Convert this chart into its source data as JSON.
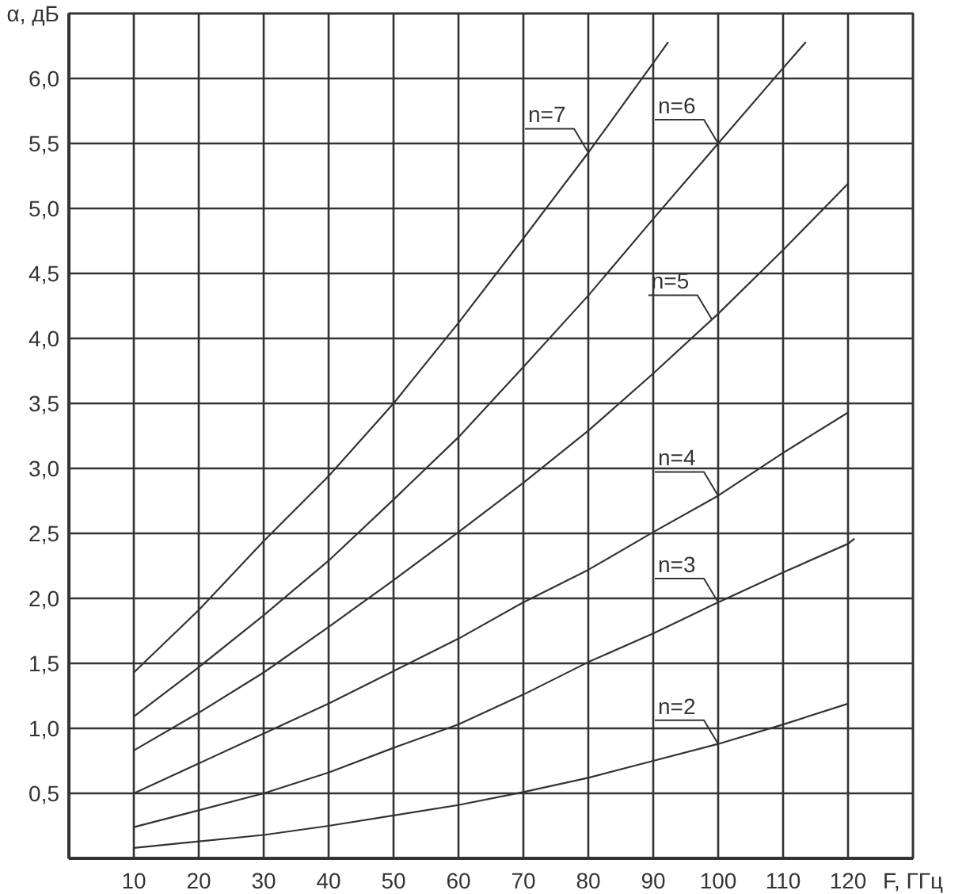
{
  "chart_data": {
    "type": "line",
    "xlabel": "F, ГГц",
    "ylabel": "α, дБ",
    "x": [
      10,
      20,
      30,
      40,
      50,
      60,
      70,
      80,
      90,
      100,
      110,
      120
    ],
    "series": [
      {
        "color": "#333333",
        "values": [
          0.08,
          0.13,
          0.18,
          0.25,
          0.33,
          0.41,
          0.51,
          0.62,
          0.75,
          0.88,
          1.03,
          1.19
        ]
      },
      {
        "color": "#333333",
        "x": [
          10,
          20,
          30,
          40,
          50,
          60,
          70,
          80,
          90,
          100,
          110,
          120,
          121
        ],
        "values": [
          0.24,
          0.37,
          0.5,
          0.66,
          0.85,
          1.03,
          1.26,
          1.51,
          1.73,
          1.97,
          2.2,
          2.42,
          2.46
        ]
      },
      {
        "color": "#333333",
        "values": [
          0.5,
          0.73,
          0.96,
          1.19,
          1.44,
          1.69,
          1.97,
          2.22,
          2.51,
          2.79,
          3.12,
          3.43
        ]
      },
      {
        "color": "#333333",
        "values": [
          0.83,
          1.12,
          1.43,
          1.78,
          2.14,
          2.51,
          2.89,
          3.29,
          3.73,
          4.19,
          4.68,
          5.19
        ]
      },
      {
        "color": "#333333",
        "x": [
          10,
          20,
          30,
          40,
          50,
          60,
          70,
          80,
          90,
          100,
          110,
          113.5
        ],
        "values": [
          1.09,
          1.47,
          1.87,
          2.29,
          2.76,
          3.24,
          3.78,
          4.33,
          4.92,
          5.5,
          6.08,
          6.28
        ]
      },
      {
        "color": "#333333",
        "x": [
          10,
          20,
          30,
          40,
          50,
          60,
          70,
          80,
          90,
          92.3
        ],
        "values": [
          1.43,
          1.91,
          2.44,
          2.94,
          3.5,
          4.12,
          4.77,
          5.43,
          6.12,
          6.28
        ]
      }
    ],
    "xlim": [
      0,
      130
    ],
    "ylim": [
      0,
      6.5
    ],
    "xticks": [
      10,
      20,
      30,
      40,
      50,
      60,
      70,
      80,
      90,
      100,
      110,
      120
    ],
    "yticks": [
      {
        "value": 0.5,
        "label": "0,5"
      },
      {
        "value": 1.0,
        "label": "1,0"
      },
      {
        "value": 1.5,
        "label": "1,5"
      },
      {
        "value": 2.0,
        "label": "2,0"
      },
      {
        "value": 2.5,
        "label": "2,5"
      },
      {
        "value": 3.0,
        "label": "3,0"
      },
      {
        "value": 3.5,
        "label": "3,5"
      },
      {
        "value": 4.0,
        "label": "4,0"
      },
      {
        "value": 4.5,
        "label": "4,5"
      },
      {
        "value": 5.0,
        "label": "5,0"
      },
      {
        "value": 5.5,
        "label": "5,5"
      },
      {
        "value": 6.0,
        "label": "6,0"
      }
    ],
    "grid": true,
    "annotations": [
      {
        "text": "n=7",
        "x": 80,
        "y": 5.43
      },
      {
        "text": "n=6",
        "x": 100,
        "y": 5.5
      },
      {
        "text": "n=5",
        "x": 99,
        "y": 4.15
      },
      {
        "text": "n=4",
        "x": 100,
        "y": 2.79
      },
      {
        "text": "n=3",
        "x": 100,
        "y": 1.97
      },
      {
        "text": "n=2",
        "x": 100,
        "y": 0.88
      }
    ]
  }
}
